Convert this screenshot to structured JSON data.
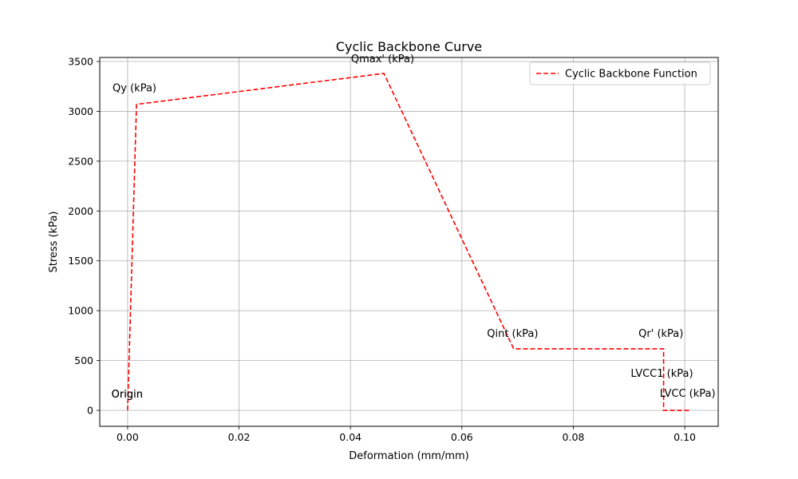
{
  "chart_data": {
    "type": "line",
    "title": "Cyclic Backbone Curve",
    "xlabel": "Deformation (mm/mm)",
    "ylabel": "Stress (kPa)",
    "xlim": [
      -0.005,
      0.106
    ],
    "ylim": [
      -160,
      3540
    ],
    "xticks": [
      0.0,
      0.02,
      0.04,
      0.06,
      0.08,
      0.1
    ],
    "xtick_labels": [
      "0.00",
      "0.02",
      "0.04",
      "0.06",
      "0.08",
      "0.10"
    ],
    "yticks": [
      0,
      500,
      1000,
      1500,
      2000,
      2500,
      3000,
      3500
    ],
    "ytick_labels": [
      "0",
      "500",
      "1000",
      "1500",
      "2000",
      "2500",
      "3000",
      "3500"
    ],
    "grid": true,
    "legend_position": "top-right",
    "series": [
      {
        "name": "Cyclic Backbone Function",
        "color": "#ff0000",
        "dash": "dashed",
        "x": [
          0.0,
          0.0016,
          0.046,
          0.0693,
          0.0962,
          0.0962,
          0.1012
        ],
        "y": [
          0,
          3070,
          3380,
          617,
          617,
          0,
          0
        ]
      }
    ],
    "annotations": [
      {
        "text": "Origin",
        "x": -0.0029,
        "y": 130
      },
      {
        "text": "Origin",
        "x": -0.0029,
        "y": 130
      },
      {
        "text": "Qy (kPa)",
        "x": -0.0027,
        "y": 3200
      },
      {
        "text": "Qmax' (kPa)",
        "x": 0.0401,
        "y": 3490
      },
      {
        "text": "Qint (kPa)",
        "x": 0.0645,
        "y": 735
      },
      {
        "text": "Qr' (kPa)",
        "x": 0.0917,
        "y": 735
      },
      {
        "text": "LVCC1 (kPa)",
        "x": 0.0903,
        "y": 335
      },
      {
        "text": "LVCC (kPa)",
        "x": 0.0955,
        "y": 135
      }
    ]
  }
}
